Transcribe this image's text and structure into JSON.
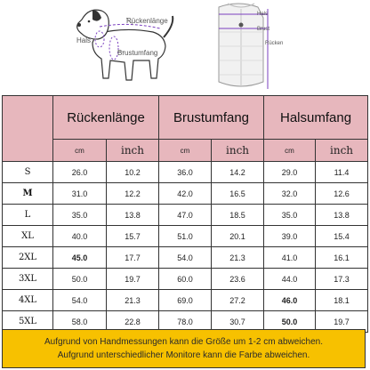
{
  "illustration": {
    "dog_labels": {
      "back": "Rückenlänge",
      "neck": "Hals",
      "chest": "Brustumfang"
    },
    "vest_labels": {
      "neck": "Hals",
      "chest": "Brust",
      "back": "Rücken"
    },
    "icons": [
      "dog-diagram-icon",
      "vest-diagram-icon"
    ],
    "accent_color": "#7a3fbf"
  },
  "table": {
    "header_color": "#e7b7bd",
    "columns": [
      {
        "title": "Rückenlänge",
        "unit_cm": "cm",
        "unit_inch": "inch"
      },
      {
        "title": "Brustumfang",
        "unit_cm": "cm",
        "unit_inch": "inch"
      },
      {
        "title": "Halsumfang",
        "unit_cm": "cm",
        "unit_inch": "inch"
      }
    ],
    "rows": [
      {
        "size": "S",
        "back_cm": "26.0",
        "back_inch": "10.2",
        "chest_cm": "36.0",
        "chest_inch": "14.2",
        "neck_cm": "29.0",
        "neck_inch": "11.4"
      },
      {
        "size": "M",
        "back_cm": "31.0",
        "back_inch": "12.2",
        "chest_cm": "42.0",
        "chest_inch": "16.5",
        "neck_cm": "32.0",
        "neck_inch": "12.6"
      },
      {
        "size": "L",
        "back_cm": "35.0",
        "back_inch": "13.8",
        "chest_cm": "47.0",
        "chest_inch": "18.5",
        "neck_cm": "35.0",
        "neck_inch": "13.8"
      },
      {
        "size": "XL",
        "back_cm": "40.0",
        "back_inch": "15.7",
        "chest_cm": "51.0",
        "chest_inch": "20.1",
        "neck_cm": "39.0",
        "neck_inch": "15.4"
      },
      {
        "size": "2XL",
        "back_cm": "45.0",
        "back_inch": "17.7",
        "chest_cm": "54.0",
        "chest_inch": "21.3",
        "neck_cm": "41.0",
        "neck_inch": "16.1"
      },
      {
        "size": "3XL",
        "back_cm": "50.0",
        "back_inch": "19.7",
        "chest_cm": "60.0",
        "chest_inch": "23.6",
        "neck_cm": "44.0",
        "neck_inch": "17.3"
      },
      {
        "size": "4XL",
        "back_cm": "54.0",
        "back_inch": "21.3",
        "chest_cm": "69.0",
        "chest_inch": "27.2",
        "neck_cm": "46.0",
        "neck_inch": "18.1"
      },
      {
        "size": "5XL",
        "back_cm": "58.0",
        "back_inch": "22.8",
        "chest_cm": "78.0",
        "chest_inch": "30.7",
        "neck_cm": "50.0",
        "neck_inch": "19.7"
      }
    ]
  },
  "note": {
    "line1": "Aufgrund von Handmessungen kann die Größe um 1-2 cm abweichen.",
    "line2": "Aufgrund unterschiedlicher Monitore kann die Farbe abweichen.",
    "background": "#f7c100"
  }
}
